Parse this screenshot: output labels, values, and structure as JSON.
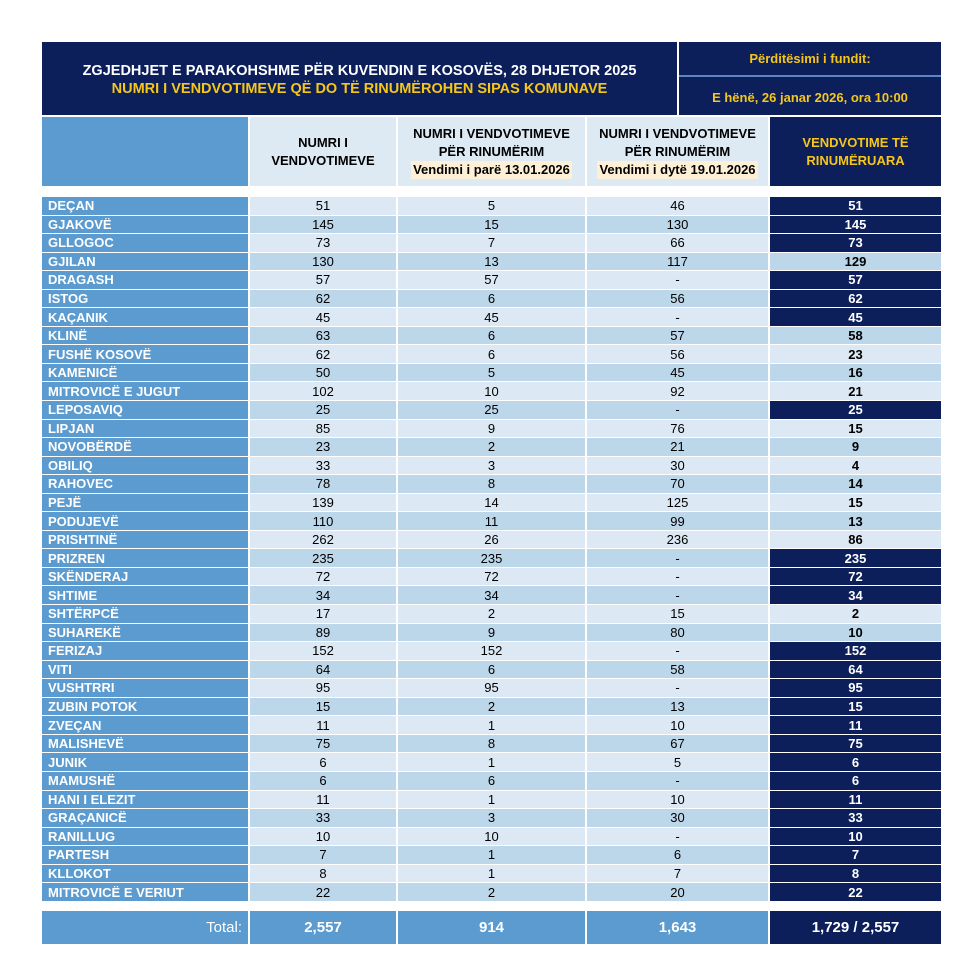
{
  "header": {
    "title": "ZGJEDHJET E PARAKOHSHME PËR KUVENDIN E KOSOVËS, 28 DHJETOR 2025",
    "subtitle": "NUMRI I VENDVOTIMEVE QË DO TË RINUMËROHEN SIPAS KOMUNAVE",
    "updated_label": "Përditësimi i fundit:",
    "updated_value": "E hënë, 26 janar 2026, ora 10:00"
  },
  "columns": {
    "c1": "NUMRI I VENDVOTIMEVE",
    "c2": "NUMRI I VENDVOTIMEVE PËR RINUMËRIM",
    "c2_note": "Vendimi i parë 13.01.2026",
    "c3": "NUMRI I VENDVOTIMEVE PËR RINUMËRIM",
    "c3_note": "Vendimi i dytë 19.01.2026",
    "c4": "VENDVOTIME TË RINUMËRUARA"
  },
  "colors": {
    "navy": "#0c1f5b",
    "yellow": "#f6c619",
    "name_col": "#5b9bcf"
  },
  "rows": [
    [
      "DEÇAN",
      "51",
      "5",
      "46",
      "51"
    ],
    [
      "GJAKOVË",
      "145",
      "15",
      "130",
      "145"
    ],
    [
      "GLLOGOC",
      "73",
      "7",
      "66",
      "73"
    ],
    [
      "GJILAN",
      "130",
      "13",
      "117",
      "129"
    ],
    [
      "DRAGASH",
      "57",
      "57",
      "-",
      "57"
    ],
    [
      "ISTOG",
      "62",
      "6",
      "56",
      "62"
    ],
    [
      "KAÇANIK",
      "45",
      "45",
      "-",
      "45"
    ],
    [
      "KLINË",
      "63",
      "6",
      "57",
      "58"
    ],
    [
      "FUSHË KOSOVË",
      "62",
      "6",
      "56",
      "23"
    ],
    [
      "KAMENICË",
      "50",
      "5",
      "45",
      "16"
    ],
    [
      "MITROVICË E JUGUT",
      "102",
      "10",
      "92",
      "21"
    ],
    [
      "LEPOSAVIQ",
      "25",
      "25",
      "-",
      "25"
    ],
    [
      "LIPJAN",
      "85",
      "9",
      "76",
      "15"
    ],
    [
      "NOVOBËRDË",
      "23",
      "2",
      "21",
      "9"
    ],
    [
      "OBILIQ",
      "33",
      "3",
      "30",
      "4"
    ],
    [
      "RAHOVEC",
      "78",
      "8",
      "70",
      "14"
    ],
    [
      "PEJË",
      "139",
      "14",
      "125",
      "15"
    ],
    [
      "PODUJEVË",
      "110",
      "11",
      "99",
      "13"
    ],
    [
      "PRISHTINË",
      "262",
      "26",
      "236",
      "86"
    ],
    [
      "PRIZREN",
      "235",
      "235",
      "-",
      "235"
    ],
    [
      "SKËNDERAJ",
      "72",
      "72",
      "-",
      "72"
    ],
    [
      "SHTIME",
      "34",
      "34",
      "-",
      "34"
    ],
    [
      "SHTËRPCË",
      "17",
      "2",
      "15",
      "2"
    ],
    [
      "SUHAREKË",
      "89",
      "9",
      "80",
      "10"
    ],
    [
      "FERIZAJ",
      "152",
      "152",
      "-",
      "152"
    ],
    [
      "VITI",
      "64",
      "6",
      "58",
      "64"
    ],
    [
      "VUSHTRRI",
      "95",
      "95",
      "-",
      "95"
    ],
    [
      "ZUBIN POTOK",
      "15",
      "2",
      "13",
      "15"
    ],
    [
      "ZVEÇAN",
      "11",
      "1",
      "10",
      "11"
    ],
    [
      "MALISHEVË",
      "75",
      "8",
      "67",
      "75"
    ],
    [
      "JUNIK",
      "6",
      "1",
      "5",
      "6"
    ],
    [
      "MAMUSHË",
      "6",
      "6",
      "-",
      "6"
    ],
    [
      "HANI I ELEZIT",
      "11",
      "1",
      "10",
      "11"
    ],
    [
      "GRAÇANICË",
      "33",
      "3",
      "30",
      "33"
    ],
    [
      "RANILLUG",
      "10",
      "10",
      "-",
      "10"
    ],
    [
      "PARTESH",
      "7",
      "1",
      "6",
      "7"
    ],
    [
      "KLLOKOT",
      "8",
      "1",
      "7",
      "8"
    ],
    [
      "MITROVICË E VERIUT",
      "22",
      "2",
      "20",
      "22"
    ]
  ],
  "total": {
    "label": "Total:",
    "c1": "2,557",
    "c2": "914",
    "c3": "1,643",
    "c4": "1,729 / 2,557"
  }
}
